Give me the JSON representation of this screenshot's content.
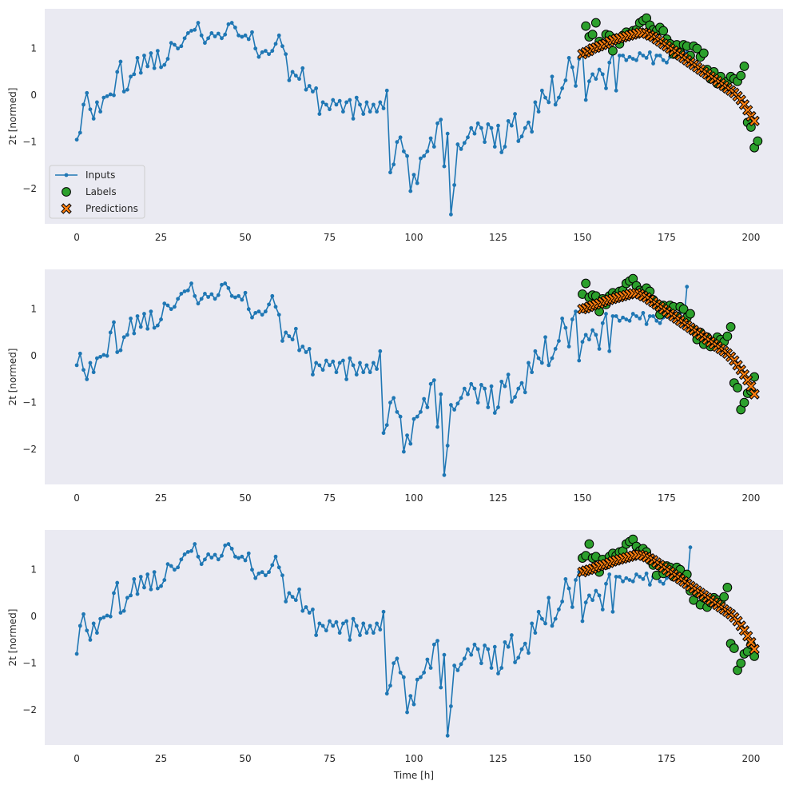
{
  "colors": {
    "plot_background": "#eaeaf2",
    "inputs": "#1f77b4",
    "labels": "#2ca02c",
    "predictions": "#ff7f0e",
    "marker_edge": "#000000",
    "text": "#262626"
  },
  "chart_data": [
    {
      "type": "line",
      "xlabel": "",
      "ylabel": "2t [normed]",
      "xlim": [
        -9.5,
        209.5
      ],
      "ylim": [
        -2.75,
        1.85
      ],
      "x_ticks": [
        0,
        25,
        50,
        75,
        100,
        125,
        150,
        175,
        200
      ],
      "y_ticks": [
        -2,
        -1,
        0,
        1
      ],
      "grid": false,
      "legend": {
        "placement": "lower-left",
        "entries": [
          {
            "label": "Inputs",
            "marker": "line-dot",
            "color": "#1f77b4"
          },
          {
            "label": "Labels",
            "marker": "circle",
            "color": "#2ca02c"
          },
          {
            "label": "Predictions",
            "marker": "x",
            "color": "#ff7f0e"
          }
        ]
      },
      "series": [
        {
          "name": "Inputs",
          "kind": "line",
          "x_start": 0,
          "values": [
            -0.95,
            -0.8,
            -0.2,
            0.05,
            -0.3,
            -0.5,
            -0.15,
            -0.35,
            -0.05,
            -0.02,
            0.02,
            0.0,
            0.5,
            0.72,
            0.08,
            0.12,
            0.4,
            0.45,
            0.8,
            0.48,
            0.85,
            0.62,
            0.9,
            0.58,
            0.95,
            0.6,
            0.65,
            0.78,
            1.12,
            1.08,
            1.0,
            1.05,
            1.22,
            1.33,
            1.38,
            1.4,
            1.55,
            1.28,
            1.12,
            1.22,
            1.33,
            1.26,
            1.32,
            1.22,
            1.3,
            1.52,
            1.55,
            1.45,
            1.28,
            1.25,
            1.28,
            1.2,
            1.35,
            1.0,
            0.82,
            0.92,
            0.95,
            0.88,
            0.95,
            1.1,
            1.28,
            1.05,
            0.88,
            0.32,
            0.5,
            0.42,
            0.35,
            0.58,
            0.12,
            0.2,
            0.08,
            0.15,
            -0.4,
            -0.15,
            -0.2,
            -0.3,
            -0.1,
            -0.2,
            -0.12,
            -0.35,
            -0.15,
            -0.1,
            -0.5,
            -0.05,
            -0.2,
            -0.4,
            -0.15,
            -0.35,
            -0.2,
            -0.35,
            -0.15,
            -0.28,
            0.1,
            -1.65,
            -1.48,
            -1.0,
            -0.9,
            -1.2,
            -1.3,
            -2.05,
            -1.7,
            -1.88,
            -1.35,
            -1.3,
            -1.2,
            -0.92,
            -1.1,
            -0.6,
            -0.52,
            -1.52,
            -0.82,
            -2.55,
            -1.92,
            -1.05,
            -1.15,
            -1.02,
            -0.9,
            -0.7,
            -0.82,
            -0.6,
            -0.7,
            -1.0,
            -0.62,
            -0.7,
            -1.1,
            -0.65,
            -1.22,
            -1.1,
            -0.55,
            -0.65,
            -0.4,
            -0.98,
            -0.88,
            -0.7,
            -0.58,
            -0.78,
            -0.15,
            -0.35,
            0.1,
            -0.05,
            -0.15,
            0.4,
            -0.2,
            -0.05,
            0.15,
            0.32,
            0.8,
            0.6,
            0.2,
            0.78,
            0.95,
            -0.1,
            0.3,
            0.45,
            0.35,
            0.55,
            0.45,
            0.15,
            0.7,
            0.9,
            0.1,
            0.85,
            0.85,
            0.75,
            0.82,
            0.78,
            0.75,
            0.9,
            0.85,
            0.8,
            0.92,
            0.68,
            0.85,
            0.85,
            0.75,
            0.7,
            0.82,
            0.84,
            0.8,
            0.88,
            0.9,
            0.92,
            0.65
          ]
        },
        {
          "name": "Labels",
          "kind": "scatter",
          "x_start": 151,
          "values": [
            1.48,
            1.25,
            1.3,
            1.55,
            1.15,
            1.1,
            1.3,
            1.28,
            0.95,
            1.22,
            1.1,
            1.28,
            1.35,
            1.3,
            1.38,
            1.4,
            1.55,
            1.6,
            1.65,
            1.5,
            1.4,
            1.38,
            1.45,
            1.38,
            1.2,
            1.1,
            0.88,
            1.08,
            0.92,
            1.08,
            1.05,
            0.85,
            1.05,
            1.0,
            0.82,
            0.9,
            0.55,
            0.35,
            0.5,
            0.25,
            0.4,
            0.2,
            0.3,
            0.4,
            0.35,
            0.3,
            0.42,
            0.62,
            -0.58,
            -0.68,
            -1.12,
            -0.98
          ]
        },
        {
          "name": "Predictions",
          "kind": "scatter",
          "x_start": 150,
          "values": [
            0.88,
            0.92,
            0.95,
            1.0,
            1.02,
            1.05,
            1.08,
            1.1,
            1.15,
            1.18,
            1.2,
            1.22,
            1.24,
            1.26,
            1.28,
            1.3,
            1.32,
            1.34,
            1.34,
            1.32,
            1.28,
            1.25,
            1.2,
            1.15,
            1.1,
            1.05,
            1.0,
            0.95,
            0.9,
            0.85,
            0.8,
            0.75,
            0.7,
            0.65,
            0.6,
            0.55,
            0.5,
            0.45,
            0.4,
            0.35,
            0.3,
            0.25,
            0.2,
            0.15,
            0.1,
            0.05,
            -0.02,
            -0.1,
            -0.2,
            -0.32,
            -0.45,
            -0.55
          ]
        }
      ]
    },
    {
      "type": "line",
      "xlabel": "",
      "ylabel": "2t [normed]",
      "xlim": [
        -9.5,
        209.5
      ],
      "ylim": [
        -2.75,
        1.85
      ],
      "x_ticks": [
        0,
        25,
        50,
        75,
        100,
        125,
        150,
        175,
        200
      ],
      "y_ticks": [
        -2,
        -1,
        0,
        1
      ],
      "grid": false,
      "series": [
        {
          "name": "Inputs",
          "kind": "line",
          "x_start": 0,
          "values": [
            -0.2,
            0.05,
            -0.3,
            -0.5,
            -0.15,
            -0.35,
            -0.05,
            -0.02,
            0.02,
            0.0,
            0.5,
            0.72,
            0.08,
            0.12,
            0.4,
            0.45,
            0.8,
            0.48,
            0.85,
            0.62,
            0.9,
            0.58,
            0.95,
            0.6,
            0.65,
            0.78,
            1.12,
            1.08,
            1.0,
            1.05,
            1.22,
            1.33,
            1.38,
            1.4,
            1.55,
            1.28,
            1.12,
            1.22,
            1.33,
            1.26,
            1.32,
            1.22,
            1.3,
            1.52,
            1.55,
            1.45,
            1.28,
            1.25,
            1.28,
            1.2,
            1.35,
            1.0,
            0.82,
            0.92,
            0.95,
            0.88,
            0.95,
            1.1,
            1.28,
            1.05,
            0.88,
            0.32,
            0.5,
            0.42,
            0.35,
            0.58,
            0.12,
            0.2,
            0.08,
            0.15,
            -0.4,
            -0.15,
            -0.2,
            -0.3,
            -0.1,
            -0.2,
            -0.12,
            -0.35,
            -0.15,
            -0.1,
            -0.5,
            -0.05,
            -0.2,
            -0.4,
            -0.15,
            -0.35,
            -0.2,
            -0.35,
            -0.15,
            -0.28,
            0.1,
            -1.65,
            -1.48,
            -1.0,
            -0.9,
            -1.2,
            -1.3,
            -2.05,
            -1.7,
            -1.88,
            -1.35,
            -1.3,
            -1.2,
            -0.92,
            -1.1,
            -0.6,
            -0.52,
            -1.52,
            -0.82,
            -2.55,
            -1.92,
            -1.05,
            -1.15,
            -1.02,
            -0.9,
            -0.7,
            -0.82,
            -0.6,
            -0.7,
            -1.0,
            -0.62,
            -0.7,
            -1.1,
            -0.65,
            -1.22,
            -1.1,
            -0.55,
            -0.65,
            -0.4,
            -0.98,
            -0.88,
            -0.7,
            -0.58,
            -0.78,
            -0.15,
            -0.35,
            0.1,
            -0.05,
            -0.15,
            0.4,
            -0.2,
            -0.05,
            0.15,
            0.32,
            0.8,
            0.6,
            0.2,
            0.78,
            0.95,
            -0.1,
            0.3,
            0.45,
            0.35,
            0.55,
            0.45,
            0.15,
            0.7,
            0.9,
            0.1,
            0.85,
            0.85,
            0.75,
            0.82,
            0.78,
            0.75,
            0.9,
            0.85,
            0.8,
            0.92,
            0.68,
            0.85,
            0.85,
            0.75,
            0.7,
            0.82,
            0.84,
            0.8,
            0.88,
            0.9,
            0.92,
            0.65,
            1.48
          ]
        },
        {
          "name": "Labels",
          "kind": "scatter",
          "x_start": 150,
          "values": [
            1.32,
            1.55,
            1.25,
            1.3,
            1.28,
            0.95,
            1.22,
            1.1,
            1.28,
            1.35,
            1.3,
            1.38,
            1.4,
            1.55,
            1.6,
            1.65,
            1.5,
            1.4,
            1.38,
            1.45,
            1.38,
            1.2,
            1.1,
            0.88,
            1.08,
            0.92,
            1.08,
            1.05,
            0.85,
            1.05,
            1.0,
            0.82,
            0.9,
            0.55,
            0.35,
            0.5,
            0.25,
            0.4,
            0.2,
            0.3,
            0.4,
            0.35,
            0.3,
            0.42,
            0.62,
            -0.58,
            -0.68,
            -1.15,
            -1.0,
            -0.8,
            -0.75,
            -0.45
          ]
        },
        {
          "name": "Predictions",
          "kind": "scatter",
          "x_start": 150,
          "values": [
            1.0,
            1.02,
            1.05,
            1.08,
            1.1,
            1.12,
            1.15,
            1.18,
            1.2,
            1.22,
            1.24,
            1.26,
            1.28,
            1.3,
            1.32,
            1.34,
            1.34,
            1.32,
            1.28,
            1.25,
            1.2,
            1.15,
            1.1,
            1.05,
            1.0,
            0.95,
            0.9,
            0.85,
            0.8,
            0.75,
            0.7,
            0.65,
            0.6,
            0.55,
            0.5,
            0.45,
            0.4,
            0.35,
            0.3,
            0.25,
            0.2,
            0.15,
            0.1,
            0.05,
            -0.02,
            -0.1,
            -0.2,
            -0.3,
            -0.4,
            -0.52,
            -0.65,
            -0.82
          ]
        }
      ]
    },
    {
      "type": "line",
      "xlabel": "Time [h]",
      "ylabel": "2t [normed]",
      "xlim": [
        -9.5,
        209.5
      ],
      "ylim": [
        -2.75,
        1.85
      ],
      "x_ticks": [
        0,
        25,
        50,
        75,
        100,
        125,
        150,
        175,
        200
      ],
      "y_ticks": [
        -2,
        -1,
        0,
        1
      ],
      "grid": false,
      "series": [
        {
          "name": "Inputs",
          "kind": "line",
          "x_start": 0,
          "values": [
            -0.8,
            -0.2,
            0.05,
            -0.3,
            -0.5,
            -0.15,
            -0.35,
            -0.05,
            -0.02,
            0.02,
            0.0,
            0.5,
            0.72,
            0.08,
            0.12,
            0.4,
            0.45,
            0.8,
            0.48,
            0.85,
            0.62,
            0.9,
            0.58,
            0.95,
            0.6,
            0.65,
            0.78,
            1.12,
            1.08,
            1.0,
            1.05,
            1.22,
            1.33,
            1.38,
            1.4,
            1.55,
            1.28,
            1.12,
            1.22,
            1.33,
            1.26,
            1.32,
            1.22,
            1.3,
            1.52,
            1.55,
            1.45,
            1.28,
            1.25,
            1.28,
            1.2,
            1.35,
            1.0,
            0.82,
            0.92,
            0.95,
            0.88,
            0.95,
            1.1,
            1.28,
            1.05,
            0.88,
            0.32,
            0.5,
            0.42,
            0.35,
            0.58,
            0.12,
            0.2,
            0.08,
            0.15,
            -0.4,
            -0.15,
            -0.2,
            -0.3,
            -0.1,
            -0.2,
            -0.12,
            -0.35,
            -0.15,
            -0.1,
            -0.5,
            -0.05,
            -0.2,
            -0.4,
            -0.15,
            -0.35,
            -0.2,
            -0.35,
            -0.15,
            -0.28,
            0.1,
            -1.65,
            -1.48,
            -1.0,
            -0.9,
            -1.2,
            -1.3,
            -2.05,
            -1.7,
            -1.88,
            -1.35,
            -1.3,
            -1.2,
            -0.92,
            -1.1,
            -0.6,
            -0.52,
            -1.52,
            -0.82,
            -2.55,
            -1.92,
            -1.05,
            -1.15,
            -1.02,
            -0.9,
            -0.7,
            -0.82,
            -0.6,
            -0.7,
            -1.0,
            -0.62,
            -0.7,
            -1.1,
            -0.65,
            -1.22,
            -1.1,
            -0.55,
            -0.65,
            -0.4,
            -0.98,
            -0.88,
            -0.7,
            -0.58,
            -0.78,
            -0.15,
            -0.35,
            0.1,
            -0.05,
            -0.15,
            0.4,
            -0.2,
            -0.05,
            0.15,
            0.32,
            0.8,
            0.6,
            0.2,
            0.78,
            0.95,
            -0.1,
            0.3,
            0.45,
            0.35,
            0.55,
            0.45,
            0.15,
            0.7,
            0.9,
            0.1,
            0.85,
            0.85,
            0.75,
            0.82,
            0.78,
            0.75,
            0.9,
            0.85,
            0.8,
            0.92,
            0.68,
            0.85,
            0.85,
            0.75,
            0.7,
            0.82,
            0.84,
            0.8,
            0.88,
            0.9,
            0.92,
            0.65,
            1.48
          ]
        },
        {
          "name": "Labels",
          "kind": "scatter",
          "x_start": 150,
          "values": [
            1.25,
            1.3,
            1.55,
            1.25,
            1.28,
            0.95,
            1.22,
            1.1,
            1.28,
            1.35,
            1.3,
            1.38,
            1.4,
            1.55,
            1.6,
            1.65,
            1.5,
            1.4,
            1.45,
            1.38,
            1.2,
            1.1,
            0.88,
            1.08,
            0.92,
            1.08,
            1.05,
            0.85,
            1.05,
            1.0,
            0.82,
            0.9,
            0.55,
            0.35,
            0.5,
            0.25,
            0.4,
            0.2,
            0.3,
            0.4,
            0.35,
            0.3,
            0.42,
            0.62,
            -0.58,
            -0.68,
            -1.15,
            -1.0,
            -0.8,
            -0.75,
            -0.6,
            -0.85
          ]
        },
        {
          "name": "Predictions",
          "kind": "scatter",
          "x_start": 150,
          "values": [
            0.95,
            0.98,
            1.0,
            1.02,
            1.05,
            1.08,
            1.1,
            1.12,
            1.15,
            1.18,
            1.2,
            1.22,
            1.24,
            1.26,
            1.28,
            1.3,
            1.32,
            1.32,
            1.3,
            1.27,
            1.24,
            1.2,
            1.15,
            1.1,
            1.05,
            1.0,
            0.95,
            0.9,
            0.85,
            0.8,
            0.75,
            0.7,
            0.65,
            0.6,
            0.55,
            0.5,
            0.45,
            0.4,
            0.35,
            0.3,
            0.25,
            0.2,
            0.15,
            0.1,
            0.05,
            -0.02,
            -0.1,
            -0.2,
            -0.3,
            -0.42,
            -0.55,
            -0.7
          ]
        }
      ]
    }
  ]
}
